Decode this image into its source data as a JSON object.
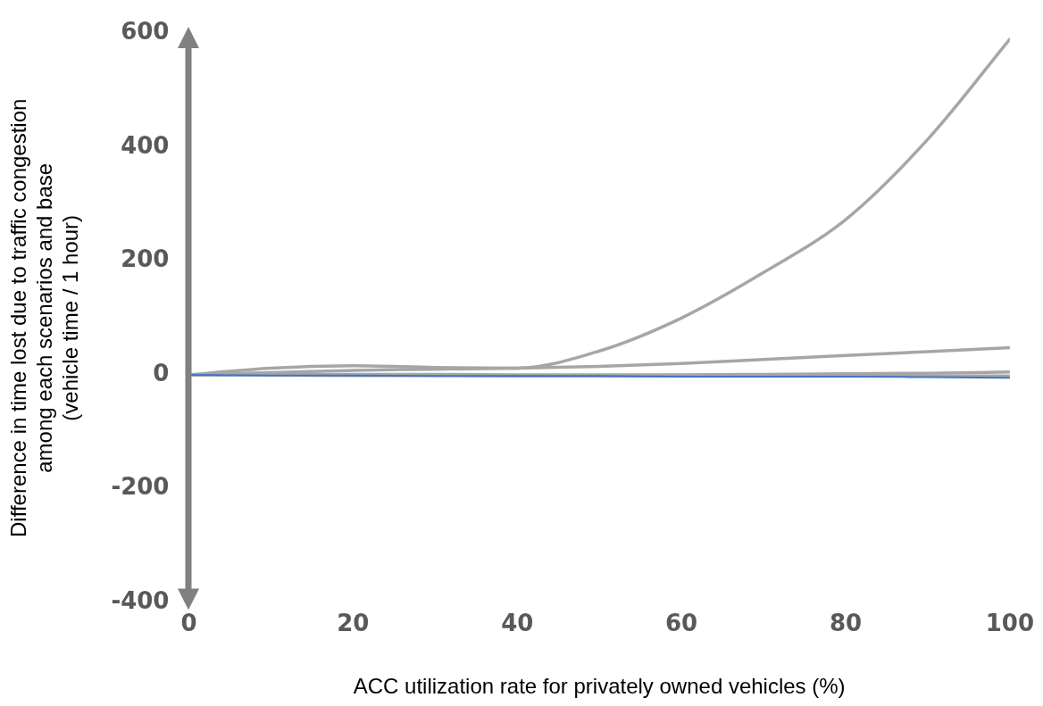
{
  "chart_data": {
    "type": "line",
    "xlabel": "ACC utilization rate for privately owned vehicles (%)",
    "ylabel": "Difference in time lost due to traffic congestion\namong each scenarios and base\n(vehicle time / 1 hour)",
    "x": [
      0,
      10,
      20,
      30,
      40,
      50,
      60,
      70,
      80,
      90,
      100
    ],
    "xlim": [
      0,
      100
    ],
    "xticks": [
      0,
      20,
      40,
      60,
      80,
      100
    ],
    "ylim": [
      -400,
      600
    ],
    "yticks": [
      -400,
      -200,
      0,
      200,
      400,
      600
    ],
    "legend": false,
    "marker": "none",
    "line_style": "solid",
    "series": [
      {
        "color": "#a6a6a6",
        "values": [
          0,
          12,
          16,
          13,
          12,
          42,
          100,
          180,
          273,
          414,
          590
        ]
      },
      {
        "color": "#a6a6a6",
        "values": [
          0,
          4,
          8,
          10,
          12,
          15,
          20,
          27,
          34,
          41,
          48
        ]
      },
      {
        "color": "#a6a6a6",
        "values": [
          0,
          1,
          1,
          1,
          0,
          0,
          0,
          1,
          2,
          3,
          5
        ]
      },
      {
        "color": "#a6a6a6",
        "values": [
          0,
          0,
          -1,
          -1,
          -2,
          -2,
          -2,
          -2,
          -2,
          -2,
          -2
        ]
      },
      {
        "color": "#4472c4",
        "values": [
          0,
          -1,
          -1,
          -2,
          -2,
          -2,
          -3,
          -3,
          -3,
          -4,
          -5
        ]
      }
    ]
  }
}
